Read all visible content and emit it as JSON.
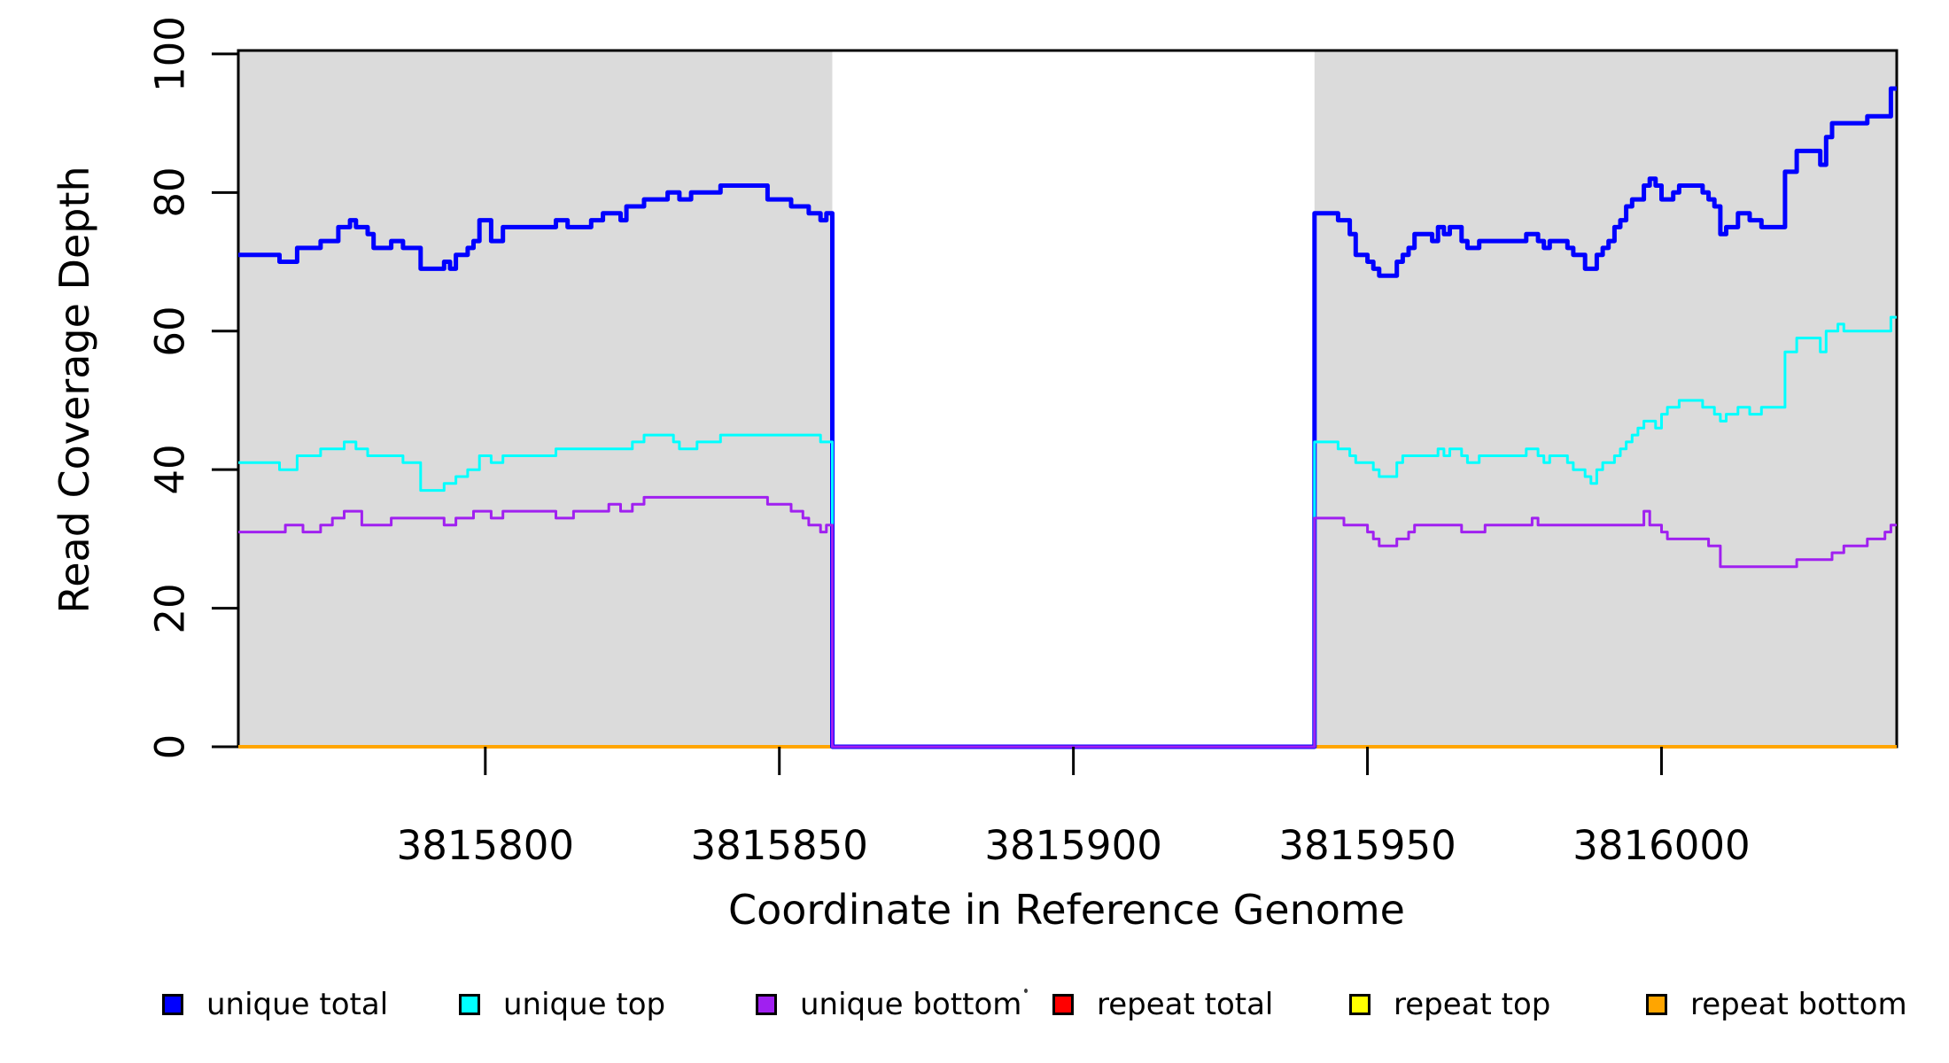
{
  "chart_data": {
    "type": "line",
    "subtype": "step",
    "title": "",
    "xlabel": "Coordinate in Reference Genome",
    "ylabel": "Read Coverage Depth",
    "xlim": [
      3815758,
      3816040
    ],
    "ylim": [
      0,
      100.5
    ],
    "x_ticks": [
      "3815800",
      "3815850",
      "3815900",
      "3815950",
      "3816000"
    ],
    "x_tick_values": [
      3815800,
      3815850,
      3815900,
      3815950,
      3816000
    ],
    "y_ticks": [
      "0",
      "20",
      "40",
      "60",
      "80",
      "100"
    ],
    "y_tick_values": [
      0,
      20,
      40,
      60,
      80,
      100
    ],
    "grid": false,
    "background_color": "#FFFFFF",
    "axis_color": "#000000",
    "shade_color": "#DBDBDB",
    "shaded_regions": [
      {
        "from": 3815758,
        "to": 3815859
      },
      {
        "from": 3815941,
        "to": 3816040
      }
    ],
    "gap_region": {
      "from": 3815859,
      "to": 3815941,
      "note": "all unique-read coverage drops to 0"
    },
    "legend_position": "bottom",
    "draw_order": [
      "repeat total",
      "repeat top",
      "repeat bottom",
      "unique total",
      "unique top",
      "unique bottom"
    ],
    "series": [
      {
        "name": "unique total",
        "color": "#0000FF",
        "line_width": 5,
        "steps": [
          [
            3815758,
            71
          ],
          [
            3815765,
            70
          ],
          [
            3815768,
            72
          ],
          [
            3815772,
            73
          ],
          [
            3815775,
            75
          ],
          [
            3815777,
            76
          ],
          [
            3815778,
            75
          ],
          [
            3815780,
            74
          ],
          [
            3815781,
            72
          ],
          [
            3815784,
            73
          ],
          [
            3815786,
            72
          ],
          [
            3815789,
            69
          ],
          [
            3815793,
            70
          ],
          [
            3815794,
            69
          ],
          [
            3815795,
            71
          ],
          [
            3815797,
            72
          ],
          [
            3815798,
            73
          ],
          [
            3815799,
            76
          ],
          [
            3815801,
            73
          ],
          [
            3815803,
            75
          ],
          [
            3815812,
            76
          ],
          [
            3815814,
            75
          ],
          [
            3815818,
            76
          ],
          [
            3815820,
            77
          ],
          [
            3815823,
            76
          ],
          [
            3815824,
            78
          ],
          [
            3815827,
            79
          ],
          [
            3815831,
            80
          ],
          [
            3815833,
            79
          ],
          [
            3815835,
            80
          ],
          [
            3815840,
            81
          ],
          [
            3815848,
            79
          ],
          [
            3815852,
            78
          ],
          [
            3815855,
            77
          ],
          [
            3815857,
            76
          ],
          [
            3815858,
            77
          ],
          [
            3815859,
            0
          ],
          [
            3815941,
            77
          ],
          [
            3815945,
            76
          ],
          [
            3815947,
            74
          ],
          [
            3815948,
            71
          ],
          [
            3815950,
            70
          ],
          [
            3815951,
            69
          ],
          [
            3815952,
            68
          ],
          [
            3815955,
            70
          ],
          [
            3815956,
            71
          ],
          [
            3815957,
            72
          ],
          [
            3815958,
            74
          ],
          [
            3815961,
            73
          ],
          [
            3815962,
            75
          ],
          [
            3815963,
            74
          ],
          [
            3815964,
            75
          ],
          [
            3815966,
            73
          ],
          [
            3815967,
            72
          ],
          [
            3815969,
            73
          ],
          [
            3815977,
            74
          ],
          [
            3815979,
            73
          ],
          [
            3815980,
            72
          ],
          [
            3815981,
            73
          ],
          [
            3815984,
            72
          ],
          [
            3815985,
            71
          ],
          [
            3815987,
            69
          ],
          [
            3815989,
            71
          ],
          [
            3815990,
            72
          ],
          [
            3815991,
            73
          ],
          [
            3815992,
            75
          ],
          [
            3815993,
            76
          ],
          [
            3815994,
            78
          ],
          [
            3815995,
            79
          ],
          [
            3815997,
            81
          ],
          [
            3815998,
            82
          ],
          [
            3815999,
            81
          ],
          [
            3816000,
            79
          ],
          [
            3816002,
            80
          ],
          [
            3816003,
            81
          ],
          [
            3816007,
            80
          ],
          [
            3816008,
            79
          ],
          [
            3816009,
            78
          ],
          [
            3816010,
            74
          ],
          [
            3816011,
            75
          ],
          [
            3816013,
            77
          ],
          [
            3816015,
            76
          ],
          [
            3816017,
            75
          ],
          [
            3816021,
            83
          ],
          [
            3816023,
            86
          ],
          [
            3816027,
            84
          ],
          [
            3816028,
            88
          ],
          [
            3816029,
            90
          ],
          [
            3816035,
            91
          ],
          [
            3816039,
            95
          ]
        ]
      },
      {
        "name": "unique top",
        "color": "#00FFFF",
        "line_width": 3,
        "steps": [
          [
            3815758,
            41
          ],
          [
            3815765,
            40
          ],
          [
            3815768,
            42
          ],
          [
            3815772,
            43
          ],
          [
            3815776,
            44
          ],
          [
            3815778,
            43
          ],
          [
            3815780,
            42
          ],
          [
            3815786,
            41
          ],
          [
            3815789,
            37
          ],
          [
            3815793,
            38
          ],
          [
            3815795,
            39
          ],
          [
            3815797,
            40
          ],
          [
            3815799,
            42
          ],
          [
            3815801,
            41
          ],
          [
            3815803,
            42
          ],
          [
            3815812,
            43
          ],
          [
            3815825,
            44
          ],
          [
            3815827,
            45
          ],
          [
            3815832,
            44
          ],
          [
            3815833,
            43
          ],
          [
            3815836,
            44
          ],
          [
            3815840,
            45
          ],
          [
            3815857,
            44
          ],
          [
            3815859,
            0
          ],
          [
            3815941,
            44
          ],
          [
            3815945,
            43
          ],
          [
            3815947,
            42
          ],
          [
            3815948,
            41
          ],
          [
            3815951,
            40
          ],
          [
            3815952,
            39
          ],
          [
            3815955,
            41
          ],
          [
            3815956,
            42
          ],
          [
            3815962,
            43
          ],
          [
            3815963,
            42
          ],
          [
            3815964,
            43
          ],
          [
            3815966,
            42
          ],
          [
            3815967,
            41
          ],
          [
            3815969,
            42
          ],
          [
            3815977,
            43
          ],
          [
            3815979,
            42
          ],
          [
            3815980,
            41
          ],
          [
            3815981,
            42
          ],
          [
            3815984,
            41
          ],
          [
            3815985,
            40
          ],
          [
            3815987,
            39
          ],
          [
            3815988,
            38
          ],
          [
            3815989,
            40
          ],
          [
            3815990,
            41
          ],
          [
            3815992,
            42
          ],
          [
            3815993,
            43
          ],
          [
            3815994,
            44
          ],
          [
            3815995,
            45
          ],
          [
            3815996,
            46
          ],
          [
            3815997,
            47
          ],
          [
            3815999,
            46
          ],
          [
            3816000,
            48
          ],
          [
            3816001,
            49
          ],
          [
            3816003,
            50
          ],
          [
            3816007,
            49
          ],
          [
            3816009,
            48
          ],
          [
            3816010,
            47
          ],
          [
            3816011,
            48
          ],
          [
            3816013,
            49
          ],
          [
            3816015,
            48
          ],
          [
            3816017,
            49
          ],
          [
            3816021,
            57
          ],
          [
            3816023,
            59
          ],
          [
            3816027,
            57
          ],
          [
            3816028,
            60
          ],
          [
            3816030,
            61
          ],
          [
            3816031,
            60
          ],
          [
            3816039,
            62
          ]
        ]
      },
      {
        "name": "unique bottom",
        "color": "#A020F0",
        "line_width": 3,
        "steps": [
          [
            3815758,
            31
          ],
          [
            3815766,
            32
          ],
          [
            3815769,
            31
          ],
          [
            3815772,
            32
          ],
          [
            3815774,
            33
          ],
          [
            3815776,
            34
          ],
          [
            3815779,
            32
          ],
          [
            3815784,
            33
          ],
          [
            3815793,
            32
          ],
          [
            3815795,
            33
          ],
          [
            3815798,
            34
          ],
          [
            3815801,
            33
          ],
          [
            3815803,
            34
          ],
          [
            3815812,
            33
          ],
          [
            3815815,
            34
          ],
          [
            3815821,
            35
          ],
          [
            3815823,
            34
          ],
          [
            3815825,
            35
          ],
          [
            3815827,
            36
          ],
          [
            3815848,
            35
          ],
          [
            3815852,
            34
          ],
          [
            3815854,
            33
          ],
          [
            3815855,
            32
          ],
          [
            3815857,
            31
          ],
          [
            3815858,
            32
          ],
          [
            3815859,
            0
          ],
          [
            3815941,
            33
          ],
          [
            3815946,
            32
          ],
          [
            3815950,
            31
          ],
          [
            3815951,
            30
          ],
          [
            3815952,
            29
          ],
          [
            3815955,
            30
          ],
          [
            3815957,
            31
          ],
          [
            3815958,
            32
          ],
          [
            3815966,
            31
          ],
          [
            3815970,
            32
          ],
          [
            3815978,
            33
          ],
          [
            3815979,
            32
          ],
          [
            3815997,
            34
          ],
          [
            3815998,
            32
          ],
          [
            3816000,
            31
          ],
          [
            3816001,
            30
          ],
          [
            3816008,
            29
          ],
          [
            3816010,
            26
          ],
          [
            3816023,
            27
          ],
          [
            3816029,
            28
          ],
          [
            3816031,
            29
          ],
          [
            3816035,
            30
          ],
          [
            3816038,
            31
          ],
          [
            3816039,
            32
          ]
        ]
      },
      {
        "name": "repeat total",
        "color": "#FF0000",
        "line_width": 3,
        "steps": [
          [
            3815758,
            0
          ]
        ]
      },
      {
        "name": "repeat top",
        "color": "#FFFF00",
        "line_width": 3,
        "steps": [
          [
            3815758,
            0
          ]
        ]
      },
      {
        "name": "repeat bottom",
        "color": "#FFA500",
        "line_width": 4,
        "steps": [
          [
            3815758,
            0
          ]
        ]
      }
    ]
  }
}
